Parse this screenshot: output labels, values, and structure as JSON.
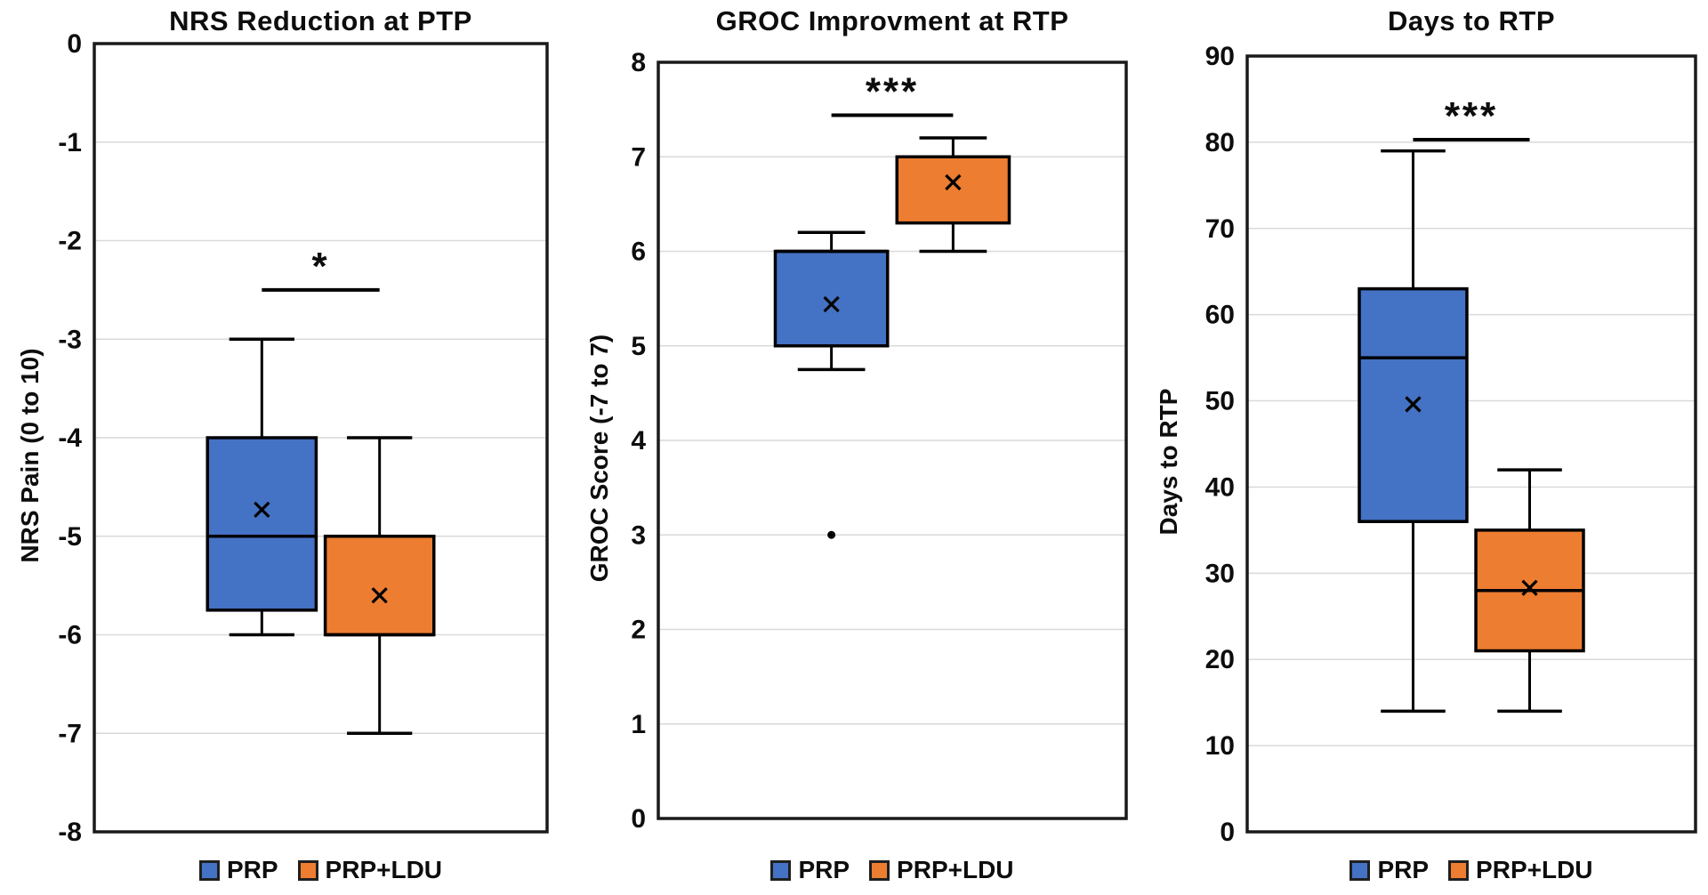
{
  "figure_background": "#ffffff",
  "colors": {
    "prp_fill": "#4472C4",
    "prp_ldu_fill": "#ED7D31",
    "box_border": "#000000",
    "plot_border": "#1a1a1a",
    "gridline": "#d9d9d9",
    "text": "#0d0d0d"
  },
  "legend": {
    "items": [
      {
        "label": "PRP",
        "color": "#4472C4"
      },
      {
        "label": "PRP+LDU",
        "color": "#ED7D31"
      }
    ]
  },
  "chart_data": [
    {
      "type": "box",
      "title": "NRS Reduction at PTP",
      "ylabel": "NRS Pain (0 to 10)",
      "ylim": [
        -8,
        0
      ],
      "yticks": [
        0,
        -1,
        -2,
        -3,
        -4,
        -5,
        -6,
        -7,
        -8
      ],
      "grid": true,
      "legend_position": "bottom",
      "series": [
        {
          "name": "PRP",
          "color": "#4472C4",
          "whisker_low": -6,
          "q1": -5.75,
          "median": -5,
          "q3": -4,
          "whisker_high": -3,
          "mean": -4.73,
          "outliers": []
        },
        {
          "name": "PRP+LDU",
          "color": "#ED7D31",
          "whisker_low": -7,
          "q1": -6,
          "median": -6,
          "q3": -5,
          "whisker_high": -4,
          "mean": -5.6,
          "outliers": []
        }
      ],
      "significance": {
        "label": "*",
        "y": -2.5
      }
    },
    {
      "type": "box",
      "title": "GROC Improvment at RTP",
      "ylabel": "GROC Score (-7 to 7)",
      "ylim": [
        0,
        8
      ],
      "yticks": [
        8,
        7,
        6,
        5,
        4,
        3,
        2,
        1,
        0
      ],
      "grid": true,
      "legend_position": "bottom",
      "series": [
        {
          "name": "PRP",
          "color": "#4472C4",
          "whisker_low": 4.75,
          "q1": 5,
          "median": 6,
          "q3": 6,
          "whisker_high": 6.2,
          "mean": 5.44,
          "outliers": [
            3
          ]
        },
        {
          "name": "PRP+LDU",
          "color": "#ED7D31",
          "whisker_low": 6,
          "q1": 6.3,
          "median": 7,
          "q3": 7,
          "whisker_high": 7.2,
          "mean": 6.73,
          "outliers": []
        }
      ],
      "significance": {
        "label": "***",
        "y": 7.44
      }
    },
    {
      "type": "box",
      "title": "Days to RTP",
      "ylabel": "Days to RTP",
      "ylim": [
        0,
        90
      ],
      "yticks": [
        90,
        80,
        70,
        60,
        50,
        40,
        30,
        20,
        10,
        0
      ],
      "grid": true,
      "legend_position": "bottom",
      "series": [
        {
          "name": "PRP",
          "color": "#4472C4",
          "whisker_low": 14,
          "q1": 36,
          "median": 55,
          "q3": 63,
          "whisker_high": 79,
          "mean": 49.6,
          "outliers": []
        },
        {
          "name": "PRP+LDU",
          "color": "#ED7D31",
          "whisker_low": 14,
          "q1": 21,
          "median": 28,
          "q3": 35,
          "whisker_high": 42,
          "mean": 28.3,
          "outliers": []
        }
      ],
      "significance": {
        "label": "***",
        "y": 80.3
      }
    }
  ]
}
